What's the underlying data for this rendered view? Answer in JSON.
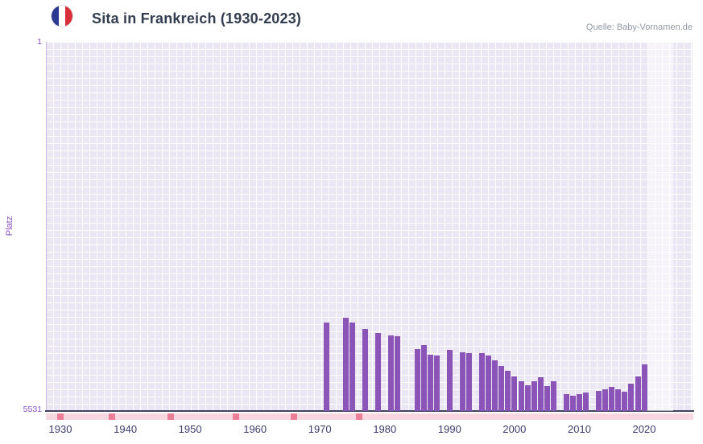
{
  "header": {
    "title": "Sita in Frankreich (1930-2023)",
    "source": "Quelle: Baby-Vornamen.de"
  },
  "icons": {
    "flag": "french-flag-icon"
  },
  "chart_data": {
    "type": "bar",
    "title": "Sita in Frankreich (1930-2023)",
    "xlabel": "",
    "ylabel": "Platz",
    "grid": true,
    "legend": "none",
    "y_axis": {
      "min": 1,
      "max": 5531,
      "inverted": true,
      "top_label": "1",
      "bottom_label": "5531"
    },
    "x_ticks": [
      "1930",
      "1940",
      "1950",
      "1960",
      "1970",
      "1980",
      "1990",
      "2000",
      "2010",
      "2020"
    ],
    "x_range": [
      1928,
      2025
    ],
    "highlight_band": {
      "start_year": 2021,
      "end_year": 2024
    },
    "point_format": [
      "year",
      "rank"
    ],
    "series": [
      {
        "name": "Platz",
        "points": [
          [
            1971,
            4200
          ],
          [
            1974,
            4130
          ],
          [
            1975,
            4210
          ],
          [
            1977,
            4300
          ],
          [
            1979,
            4360
          ],
          [
            1981,
            4400
          ],
          [
            1982,
            4410
          ],
          [
            1985,
            4600
          ],
          [
            1986,
            4540
          ],
          [
            1987,
            4690
          ],
          [
            1988,
            4700
          ],
          [
            1990,
            4610
          ],
          [
            1992,
            4650
          ],
          [
            1993,
            4660
          ],
          [
            1995,
            4660
          ],
          [
            1996,
            4700
          ],
          [
            1997,
            4770
          ],
          [
            1998,
            4850
          ],
          [
            1999,
            4930
          ],
          [
            2000,
            5010
          ],
          [
            2001,
            5090
          ],
          [
            2002,
            5140
          ],
          [
            2003,
            5090
          ],
          [
            2004,
            5030
          ],
          [
            2005,
            5160
          ],
          [
            2006,
            5080
          ],
          [
            2008,
            5280
          ],
          [
            2009,
            5300
          ],
          [
            2010,
            5280
          ],
          [
            2011,
            5250
          ],
          [
            2013,
            5230
          ],
          [
            2014,
            5200
          ],
          [
            2015,
            5170
          ],
          [
            2016,
            5200
          ],
          [
            2017,
            5240
          ],
          [
            2018,
            5120
          ],
          [
            2019,
            5010
          ],
          [
            2020,
            4830
          ]
        ]
      }
    ],
    "bottom_strip": {
      "marker_years": [
        1930,
        1938,
        1947,
        1957,
        1966,
        1976
      ]
    },
    "colors": {
      "bar": "#8b55b8",
      "plot_background": "#eae6f3",
      "grid": "#ffffff",
      "accent_purple": "#8a50c0",
      "tick_label": "#3c3c6e",
      "axis_line": "#42425f",
      "strip": "#f8d8e0",
      "strip_marker": "#ec7f97",
      "flag_blue": "#2b3990",
      "flag_red": "#d8303a",
      "title_color": "#333d50",
      "source_color": "#9299a3"
    }
  }
}
